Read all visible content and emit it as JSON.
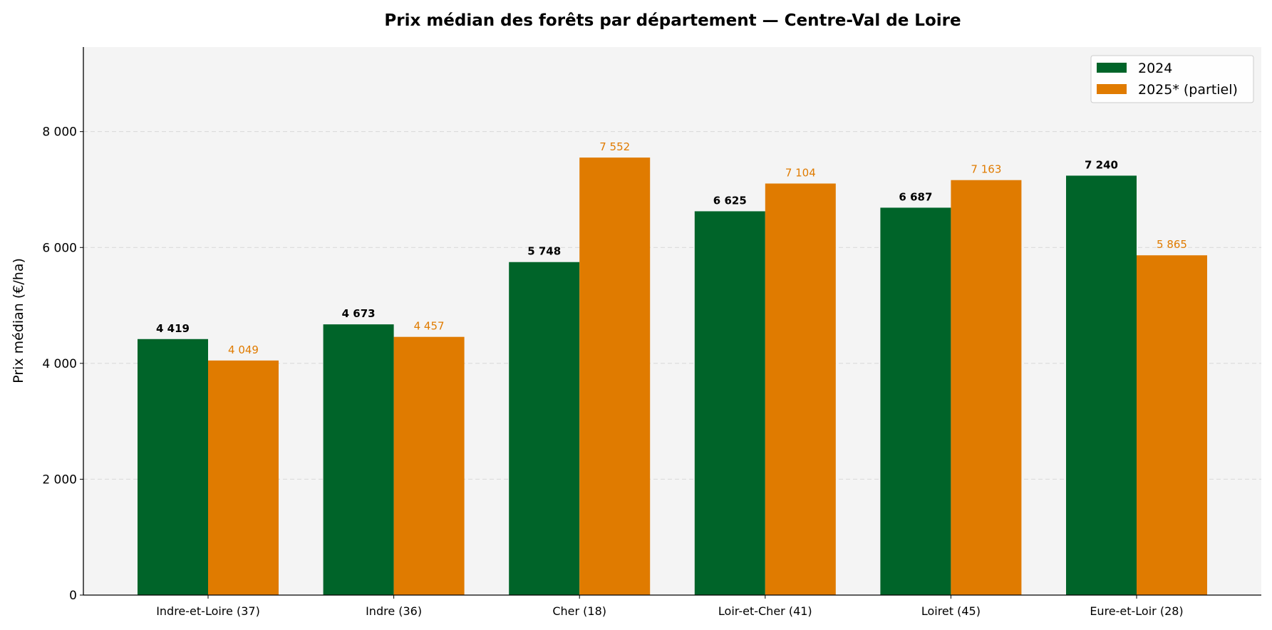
{
  "chart_data": {
    "type": "bar",
    "title": "Prix médian des forêts par département — Centre-Val de Loire",
    "xlabel": "",
    "ylabel": "Prix médian (€/ha)",
    "ylim": [
      0,
      9460
    ],
    "yticks": [
      0,
      2000,
      4000,
      6000,
      8000
    ],
    "ytick_labels": [
      "0",
      "2 000",
      "4 000",
      "6 000",
      "8 000"
    ],
    "grid": "y-dashed",
    "legend_position": "top-right",
    "categories": [
      "Indre-et-Loire (37)",
      "Indre (36)",
      "Cher (18)",
      "Loir-et-Cher (41)",
      "Loiret (45)",
      "Eure-et-Loir (28)"
    ],
    "series": [
      {
        "name": "2024",
        "color": "#006429",
        "label_color": "#000000",
        "values": [
          4419,
          4673,
          5748,
          6625,
          6687,
          7240
        ],
        "labels": [
          "4 419",
          "4 673",
          "5 748",
          "6 625",
          "6 687",
          "7 240"
        ]
      },
      {
        "name": "2025* (partiel)",
        "color": "#E07B00",
        "label_color": "#E07B00",
        "values": [
          4049,
          4457,
          7552,
          7104,
          7163,
          5865
        ],
        "labels": [
          "4 049",
          "4 457",
          "7 552",
          "7 104",
          "7 163",
          "5 865"
        ]
      }
    ],
    "background": "#F4F4F4"
  }
}
